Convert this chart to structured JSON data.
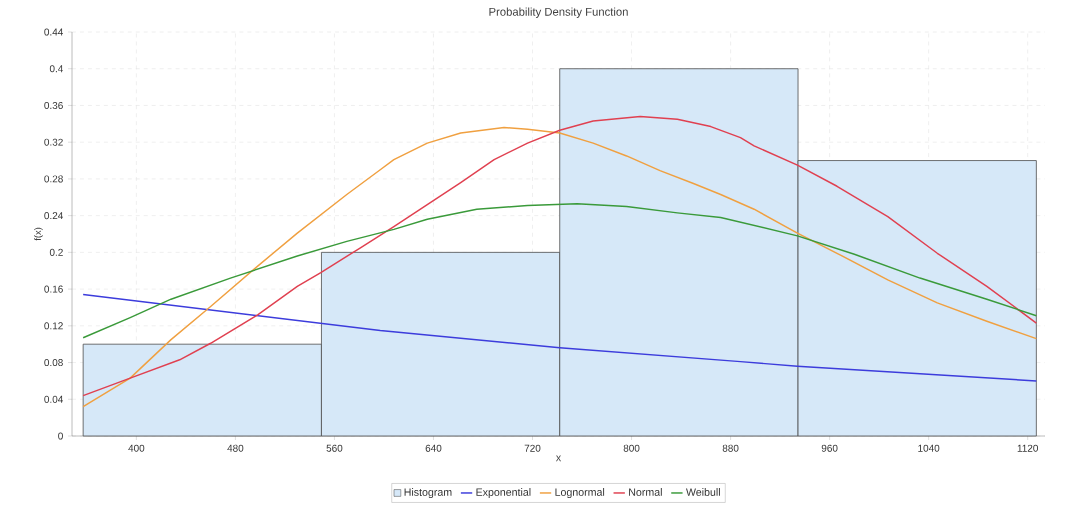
{
  "chart_data": {
    "type": "histogram",
    "title": "Probability Density Function",
    "xlabel": "x",
    "ylabel": "f(x)",
    "xlim": [
      348,
      1134
    ],
    "ylim": [
      0,
      0.44
    ],
    "xticks": [
      400,
      480,
      560,
      640,
      720,
      800,
      880,
      960,
      1040,
      1120
    ],
    "yticks": [
      0,
      0.04,
      0.08,
      0.12,
      0.16,
      0.2,
      0.24,
      0.28,
      0.32,
      0.36,
      0.4,
      0.44
    ],
    "grid": true,
    "legend": "bottom",
    "series": [
      {
        "name": "Histogram",
        "color": "#d6e8f8",
        "bins": [
          357,
          549.5,
          742,
          934.5,
          1127
        ],
        "values": [
          0.1,
          0.2,
          0.4,
          0.3
        ]
      },
      {
        "type": "line",
        "name": "Exponential",
        "color": "#3c3cdc",
        "x": [
          357,
          597,
          742,
          888,
          934,
          1127
        ],
        "values": [
          0.154,
          0.115,
          0.096,
          0.081,
          0.076,
          0.06
        ]
      },
      {
        "type": "line",
        "name": "Lognormal",
        "color": "#f0a040",
        "x": [
          357,
          395,
          428,
          460,
          498,
          530,
          570,
          597,
          608,
          635,
          662,
          697,
          716,
          742,
          769,
          796,
          823,
          850,
          872,
          899,
          934,
          966,
          1007,
          1047,
          1087,
          1127
        ],
        "values": [
          0.032,
          0.063,
          0.105,
          0.141,
          0.185,
          0.221,
          0.263,
          0.29,
          0.301,
          0.319,
          0.33,
          0.336,
          0.334,
          0.33,
          0.319,
          0.305,
          0.289,
          0.275,
          0.263,
          0.247,
          0.221,
          0.199,
          0.17,
          0.145,
          0.125,
          0.106
        ]
      },
      {
        "type": "line",
        "name": "Normal",
        "color": "#e04050",
        "x": [
          357,
          395,
          435,
          460,
          498,
          530,
          549,
          581,
          608,
          635,
          662,
          689,
          716,
          742,
          769,
          807,
          837,
          864,
          888,
          899,
          934,
          966,
          1007,
          1047,
          1087,
          1127
        ],
        "values": [
          0.044,
          0.063,
          0.083,
          0.101,
          0.132,
          0.163,
          0.178,
          0.205,
          0.228,
          0.252,
          0.276,
          0.301,
          0.319,
          0.333,
          0.343,
          0.348,
          0.345,
          0.337,
          0.325,
          0.316,
          0.295,
          0.272,
          0.239,
          0.199,
          0.163,
          0.123
        ]
      },
      {
        "type": "line",
        "name": "Weibull",
        "color": "#3a9a3a",
        "x": [
          357,
          395,
          428,
          476,
          530,
          570,
          608,
          635,
          675,
          716,
          756,
          796,
          837,
          872,
          934,
          980,
          1033,
          1087,
          1127
        ],
        "values": [
          0.107,
          0.129,
          0.149,
          0.172,
          0.196,
          0.212,
          0.225,
          0.236,
          0.247,
          0.251,
          0.253,
          0.25,
          0.243,
          0.238,
          0.218,
          0.198,
          0.172,
          0.149,
          0.131
        ]
      }
    ]
  }
}
